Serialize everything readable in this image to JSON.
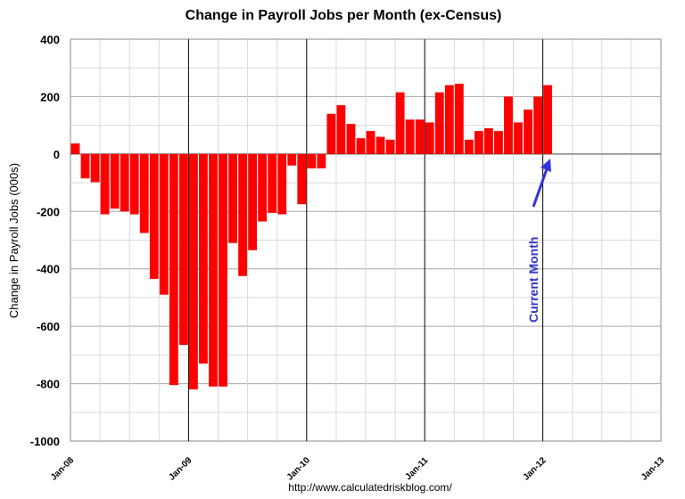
{
  "chart_data": {
    "type": "bar",
    "title": "Change in Payroll Jobs per Month (ex-Census)",
    "ylabel": "Change in Payroll Jobs (000s)",
    "xlabel": "",
    "ylim": [
      -1000,
      400
    ],
    "yticks": [
      400,
      200,
      0,
      -200,
      -400,
      -600,
      -800,
      -1000
    ],
    "x_tick_labels": [
      "Jan-08",
      "Jan-09",
      "Jan-10",
      "Jan-11",
      "Jan-12",
      "Jan-13"
    ],
    "months_axis": {
      "start": "Jan-08",
      "end": "Jan-13"
    },
    "bar_color": "#ff0000",
    "grid": true,
    "series": [
      {
        "start_month": "Jan-08",
        "values": [
          37,
          -85,
          -98,
          -210,
          -190,
          -200,
          -210,
          -275,
          -435,
          -490,
          -805,
          -665,
          -820,
          -730,
          -810,
          -810,
          -310,
          -425,
          -335,
          -235,
          -205,
          -210,
          -40,
          -175,
          -50,
          -50,
          140,
          170,
          105,
          55,
          80,
          60,
          50,
          215,
          120,
          120,
          110,
          215,
          240,
          245,
          50,
          80,
          90,
          80,
          200,
          110,
          155,
          200,
          240
        ]
      }
    ],
    "annotation": {
      "text": "Current Month",
      "color": "#3333cc"
    },
    "source": "http://www.calculatedriskblog.com/"
  }
}
